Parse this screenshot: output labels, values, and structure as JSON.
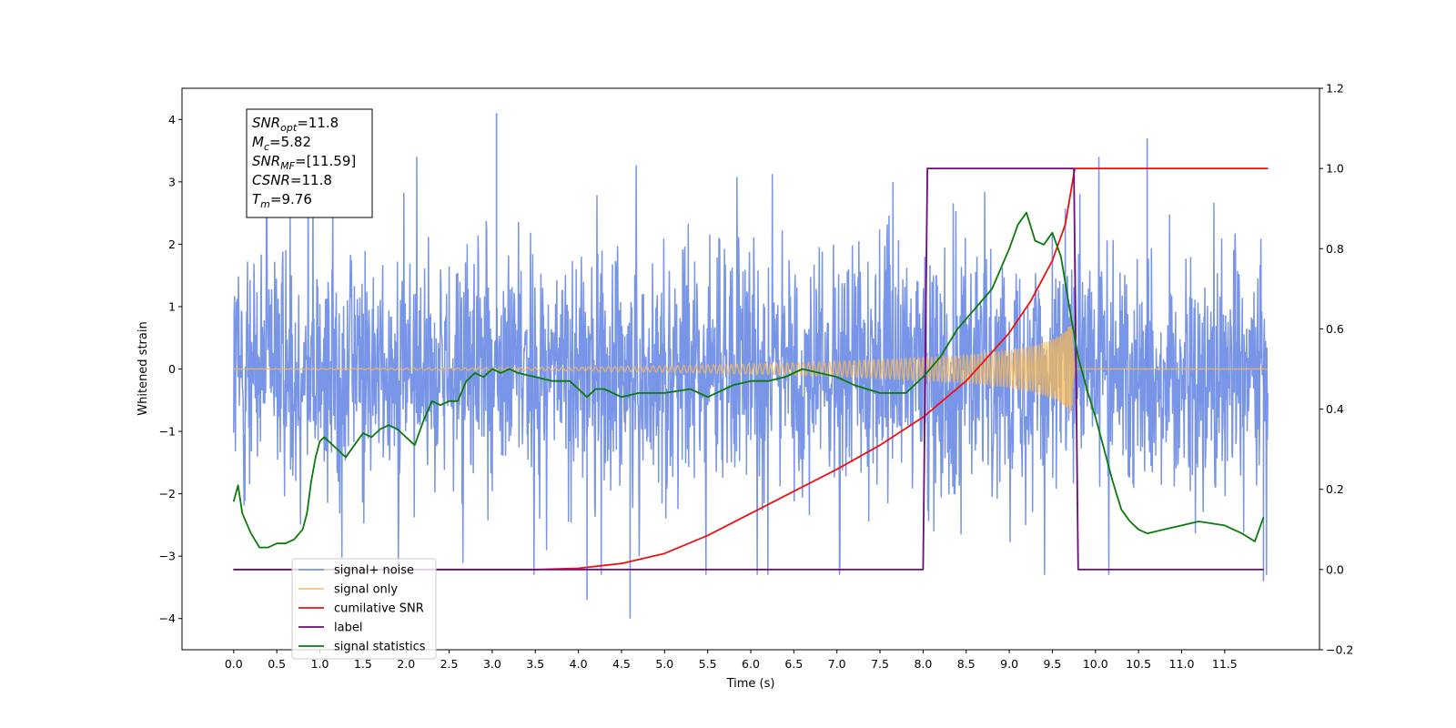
{
  "chart_data": {
    "type": "line",
    "xlabel": "Time (s)",
    "ylabel": "Whitened strain",
    "xlim": [
      -0.6,
      12.6
    ],
    "ylim": [
      -4.5,
      4.5
    ],
    "y2lim": [
      -0.2,
      1.2
    ],
    "x_ticks": [
      "0.0",
      "0.5",
      "1.0",
      "1.5",
      "2.0",
      "2.5",
      "3.0",
      "3.5",
      "4.0",
      "4.5",
      "5.0",
      "5.5",
      "6.0",
      "6.5",
      "7.0",
      "7.5",
      "8.0",
      "8.5",
      "9.0",
      "9.5",
      "10.0",
      "10.5",
      "11.0",
      "11.5"
    ],
    "y_ticks": [
      "4",
      "3",
      "2",
      "1",
      "0",
      "−1",
      "−2",
      "−3",
      "−4"
    ],
    "y2_ticks": [
      "1.2",
      "1.0",
      "0.8",
      "0.6",
      "0.4",
      "0.2",
      "0.0",
      "−0.2"
    ],
    "legend_position": "lower-left",
    "annotation": [
      {
        "sym": "SNR",
        "sub": "opt",
        "val": "=11.8"
      },
      {
        "sym": "M",
        "sub": "c",
        "val": "=5.82"
      },
      {
        "sym": "SNR",
        "sub": "MF",
        "val": "=[11.59]"
      },
      {
        "sym": "CSNR",
        "sub": "",
        "val": "=11.8"
      },
      {
        "sym": "T",
        "sub": "m",
        "val": "=9.76"
      }
    ],
    "series": [
      {
        "name": "signal+ noise",
        "color": "#6a89e4",
        "axis": "left",
        "x_range": [
          0.0,
          12.0
        ],
        "amplitude_std": 1.0,
        "extremes": [
          [
            3.05,
            4.1
          ],
          [
            4.1,
            -3.7
          ],
          [
            4.6,
            -4.0
          ],
          [
            10.6,
            3.7
          ],
          [
            11.95,
            -3.4
          ]
        ]
      },
      {
        "name": "signal only",
        "color": "#f5b95a",
        "axis": "left",
        "x_range": [
          0.0,
          12.0
        ],
        "chirp_end": 9.76,
        "envelope": [
          [
            0.0,
            0.0
          ],
          [
            4.0,
            0.03
          ],
          [
            5.0,
            0.05
          ],
          [
            6.0,
            0.08
          ],
          [
            7.0,
            0.12
          ],
          [
            8.0,
            0.18
          ],
          [
            8.5,
            0.22
          ],
          [
            9.0,
            0.3
          ],
          [
            9.3,
            0.38
          ],
          [
            9.5,
            0.48
          ],
          [
            9.65,
            0.6
          ],
          [
            9.72,
            0.75
          ],
          [
            9.76,
            0.0
          ],
          [
            12.0,
            0.0
          ]
        ]
      },
      {
        "name": "cumilative SNR",
        "color": "#ee1010",
        "axis": "right",
        "x": [
          0.0,
          3.5,
          4.0,
          4.5,
          5.0,
          5.5,
          6.0,
          6.5,
          7.0,
          7.5,
          8.0,
          8.5,
          9.0,
          9.25,
          9.5,
          9.65,
          9.76,
          12.0
        ],
        "values": [
          0.0,
          0.0,
          0.003,
          0.015,
          0.04,
          0.085,
          0.14,
          0.195,
          0.25,
          0.31,
          0.38,
          0.47,
          0.59,
          0.67,
          0.77,
          0.86,
          1.0,
          1.0
        ]
      },
      {
        "name": "label",
        "color": "#6e0a7c",
        "axis": "right",
        "x": [
          0.0,
          8.0,
          8.05,
          9.75,
          9.8,
          11.95
        ],
        "values": [
          0.0,
          0.0,
          1.0,
          1.0,
          0.0,
          0.0
        ]
      },
      {
        "name": "signal statistics",
        "color": "#0a7a0a",
        "axis": "right",
        "x": [
          0.0,
          0.05,
          0.1,
          0.2,
          0.3,
          0.4,
          0.5,
          0.6,
          0.7,
          0.8,
          0.85,
          0.9,
          0.95,
          1.0,
          1.05,
          1.1,
          1.2,
          1.3,
          1.4,
          1.5,
          1.6,
          1.7,
          1.8,
          1.9,
          2.0,
          2.1,
          2.2,
          2.3,
          2.4,
          2.5,
          2.6,
          2.7,
          2.8,
          2.9,
          3.0,
          3.1,
          3.2,
          3.3,
          3.5,
          3.7,
          3.9,
          4.1,
          4.2,
          4.3,
          4.5,
          4.7,
          5.0,
          5.3,
          5.5,
          5.8,
          6.0,
          6.2,
          6.4,
          6.6,
          6.8,
          7.0,
          7.2,
          7.5,
          7.8,
          8.0,
          8.2,
          8.4,
          8.6,
          8.8,
          9.0,
          9.1,
          9.2,
          9.3,
          9.4,
          9.5,
          9.6,
          9.7,
          9.8,
          9.9,
          10.0,
          10.1,
          10.2,
          10.3,
          10.4,
          10.5,
          10.6,
          10.8,
          11.0,
          11.2,
          11.5,
          11.7,
          11.85,
          11.95
        ],
        "values": [
          0.17,
          0.21,
          0.14,
          0.09,
          0.055,
          0.055,
          0.065,
          0.065,
          0.075,
          0.1,
          0.14,
          0.22,
          0.28,
          0.32,
          0.33,
          0.32,
          0.3,
          0.28,
          0.31,
          0.34,
          0.33,
          0.35,
          0.36,
          0.35,
          0.33,
          0.31,
          0.37,
          0.42,
          0.41,
          0.42,
          0.42,
          0.47,
          0.49,
          0.48,
          0.5,
          0.49,
          0.5,
          0.49,
          0.48,
          0.47,
          0.47,
          0.43,
          0.45,
          0.45,
          0.43,
          0.44,
          0.44,
          0.45,
          0.43,
          0.46,
          0.47,
          0.47,
          0.48,
          0.5,
          0.49,
          0.48,
          0.46,
          0.44,
          0.44,
          0.48,
          0.53,
          0.6,
          0.65,
          0.7,
          0.8,
          0.86,
          0.89,
          0.82,
          0.81,
          0.84,
          0.78,
          0.65,
          0.53,
          0.45,
          0.38,
          0.3,
          0.22,
          0.15,
          0.12,
          0.1,
          0.09,
          0.1,
          0.11,
          0.12,
          0.11,
          0.09,
          0.07,
          0.13
        ]
      }
    ]
  }
}
